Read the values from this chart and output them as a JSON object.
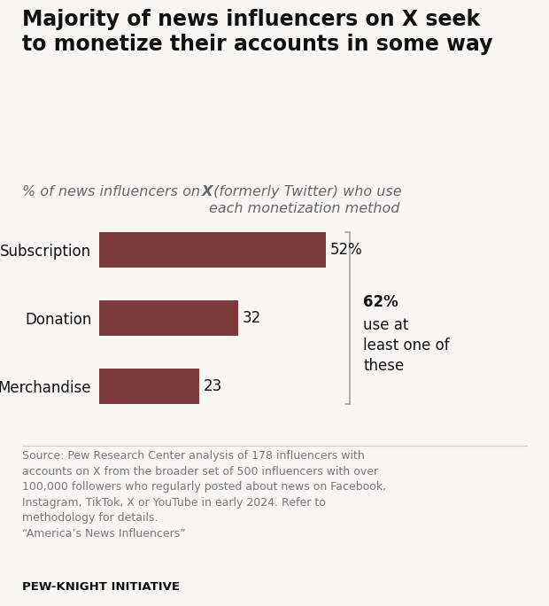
{
  "title": "Majority of news influencers on X seek\nto monetize their accounts in some way",
  "categories": [
    "Subscription",
    "Donation",
    "Merchandise"
  ],
  "values": [
    52,
    32,
    23
  ],
  "value_labels": [
    "52%",
    "32",
    "23"
  ],
  "bar_color": "#7b3b3b",
  "background_color": "#f9f7f2",
  "annotation_pct": "62%",
  "annotation_rest": "use at\nleast one of\nthese",
  "source_text": "Source: Pew Research Center analysis of 178 influencers with\naccounts on X from the broader set of 500 influencers with over\n100,000 followers who regularly posted about news on Facebook,\nInstagram, TikTok, X or YouTube in early 2024. Refer to\nmethodology for details.\n“America’s News Influencers”",
  "footer": "PEW-KNIGHT INITIATIVE",
  "xlim": [
    0,
    68
  ]
}
